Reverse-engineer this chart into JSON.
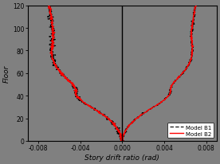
{
  "title": "",
  "xlabel": "Story drift ratio (rad)",
  "ylabel": "Floor",
  "xlim": [
    -0.009,
    0.009
  ],
  "ylim": [
    0,
    120
  ],
  "xticks": [
    -0.008,
    -0.004,
    0.0,
    0.004,
    0.008
  ],
  "yticks": [
    0,
    20,
    40,
    60,
    80,
    100,
    120
  ],
  "background_color": "#808080",
  "axes_color": "#808080",
  "line_color_b1": "#000000",
  "line_color_b2": "#ff0000",
  "legend_labels": [
    "Model B1",
    "Model B2"
  ],
  "vline_x": 0.0,
  "floors": [
    0,
    2,
    4,
    6,
    8,
    10,
    12,
    14,
    16,
    18,
    20,
    22,
    24,
    26,
    28,
    30,
    32,
    34,
    36,
    38,
    40,
    42,
    44,
    46,
    48,
    50,
    52,
    54,
    56,
    58,
    60,
    62,
    64,
    66,
    68,
    70,
    72,
    74,
    76,
    78,
    80,
    82,
    84,
    86,
    88,
    90,
    92,
    94,
    96,
    98,
    100,
    102,
    104,
    106,
    108,
    110,
    112,
    114,
    116,
    118,
    120
  ],
  "drift_left": [
    0.0,
    -5e-05,
    -0.0001,
    -0.00018,
    -0.00028,
    -0.0004,
    -0.00055,
    -0.00072,
    -0.00092,
    -0.00115,
    -0.0014,
    -0.00168,
    -0.00198,
    -0.0023,
    -0.00264,
    -0.00298,
    -0.00332,
    -0.00364,
    -0.00392,
    -0.00415,
    -0.00432,
    -0.00438,
    -0.00435,
    -0.0044,
    -0.00455,
    -0.00472,
    -0.00492,
    -0.00515,
    -0.00538,
    -0.0056,
    -0.0058,
    -0.00598,
    -0.00614,
    -0.00628,
    -0.0064,
    -0.0065,
    -0.00658,
    -0.00664,
    -0.00668,
    -0.0067,
    -0.0067,
    -0.00668,
    -0.00666,
    -0.00663,
    -0.0066,
    -0.00658,
    -0.00657,
    -0.00657,
    -0.00658,
    -0.0066,
    -0.00662,
    -0.00665,
    -0.00668,
    -0.00671,
    -0.00674,
    -0.00677,
    -0.0068,
    -0.00684,
    -0.00688,
    -0.00693,
    -0.00698
  ],
  "drift_right": [
    0.0,
    5e-05,
    0.0001,
    0.00018,
    0.00028,
    0.0004,
    0.00055,
    0.00072,
    0.00092,
    0.00115,
    0.0014,
    0.00168,
    0.00198,
    0.0023,
    0.00264,
    0.003,
    0.00335,
    0.00368,
    0.00398,
    0.00423,
    0.00443,
    0.00455,
    0.00458,
    0.0046,
    0.00468,
    0.0048,
    0.00496,
    0.00515,
    0.00535,
    0.00556,
    0.00576,
    0.00594,
    0.0061,
    0.00624,
    0.00636,
    0.00646,
    0.00654,
    0.0066,
    0.00664,
    0.00667,
    0.00668,
    0.00668,
    0.00667,
    0.00665,
    0.00663,
    0.00661,
    0.0066,
    0.0066,
    0.00661,
    0.00663,
    0.00665,
    0.00668,
    0.00671,
    0.00674,
    0.00677,
    0.0068,
    0.00683,
    0.00687,
    0.00691,
    0.00695,
    0.007
  ]
}
